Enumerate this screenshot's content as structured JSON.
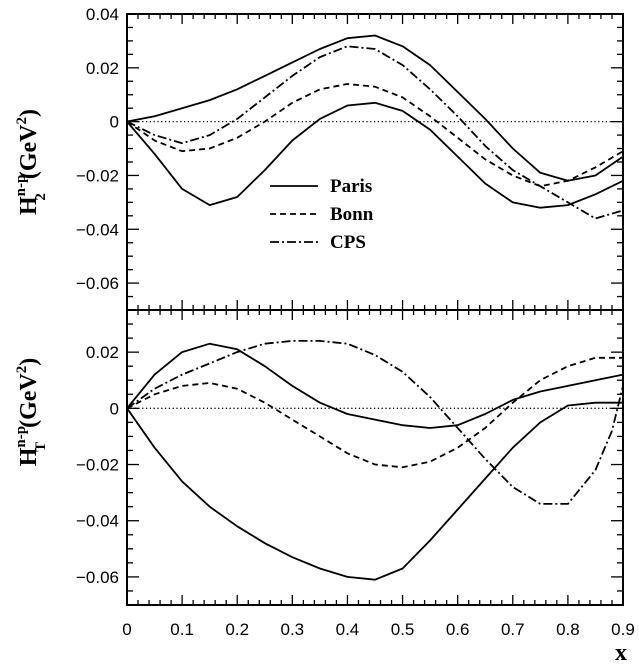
{
  "chart_data": [
    {
      "type": "line",
      "panel": "top",
      "ylabel": {
        "main": "H",
        "sup": "n-p",
        "sub": "2",
        "unit_pre": "(GeV",
        "unit_sup": "2",
        "unit_post": ")"
      },
      "ylim": [
        -0.07,
        0.04
      ],
      "yticks": [
        0.04,
        0.02,
        0,
        -0.02,
        -0.04,
        -0.06
      ],
      "ytick_labels": [
        "0.04",
        "0.02",
        "0",
        "−0.02",
        "−0.04",
        "−0.06"
      ],
      "xlim": [
        0,
        0.9
      ],
      "series": [
        {
          "name": "Paris",
          "style": "solid",
          "x": [
            0,
            0.05,
            0.1,
            0.15,
            0.2,
            0.25,
            0.3,
            0.35,
            0.4,
            0.45,
            0.5,
            0.55,
            0.6,
            0.65,
            0.7,
            0.75,
            0.8,
            0.85,
            0.9
          ],
          "y": [
            0,
            0.002,
            0.005,
            0.008,
            0.012,
            0.017,
            0.022,
            0.027,
            0.031,
            0.032,
            0.028,
            0.021,
            0.011,
            0.001,
            -0.01,
            -0.019,
            -0.022,
            -0.02,
            -0.013
          ]
        },
        {
          "name": "Paris",
          "style": "solid",
          "x": [
            0,
            0.05,
            0.1,
            0.15,
            0.2,
            0.25,
            0.3,
            0.35,
            0.4,
            0.45,
            0.5,
            0.55,
            0.6,
            0.65,
            0.7,
            0.75,
            0.8,
            0.85,
            0.9
          ],
          "y": [
            0,
            -0.012,
            -0.025,
            -0.031,
            -0.028,
            -0.018,
            -0.007,
            0.001,
            0.006,
            0.007,
            0.004,
            -0.003,
            -0.013,
            -0.023,
            -0.03,
            -0.032,
            -0.031,
            -0.027,
            -0.022
          ]
        },
        {
          "name": "Bonn",
          "style": "dashed",
          "x": [
            0,
            0.05,
            0.1,
            0.15,
            0.2,
            0.25,
            0.3,
            0.35,
            0.4,
            0.45,
            0.5,
            0.55,
            0.6,
            0.65,
            0.7,
            0.75,
            0.8,
            0.85,
            0.9
          ],
          "y": [
            0,
            -0.007,
            -0.011,
            -0.01,
            -0.006,
            0.0,
            0.007,
            0.012,
            0.014,
            0.013,
            0.009,
            0.002,
            -0.006,
            -0.014,
            -0.02,
            -0.024,
            -0.022,
            -0.017,
            -0.011
          ]
        },
        {
          "name": "CPS",
          "style": "dashdot",
          "x": [
            0,
            0.05,
            0.1,
            0.15,
            0.2,
            0.25,
            0.3,
            0.35,
            0.4,
            0.45,
            0.5,
            0.55,
            0.6,
            0.65,
            0.7,
            0.75,
            0.8,
            0.85,
            0.9
          ],
          "y": [
            0,
            -0.005,
            -0.008,
            -0.005,
            0.001,
            0.009,
            0.017,
            0.024,
            0.028,
            0.027,
            0.021,
            0.012,
            0.002,
            -0.009,
            -0.018,
            -0.024,
            -0.03,
            -0.036,
            -0.033
          ]
        },
        {
          "name": "",
          "style": "dotted",
          "x": [
            0,
            0.9
          ],
          "y": [
            0,
            0
          ]
        }
      ],
      "legend": {
        "placement": "center",
        "entries": [
          {
            "label": "Paris",
            "style": "solid"
          },
          {
            "label": "Bonn",
            "style": "dashed"
          },
          {
            "label": "CPS",
            "style": "dashdot"
          }
        ]
      }
    },
    {
      "type": "line",
      "panel": "bottom",
      "ylabel": {
        "main": "H",
        "sup": "n-p",
        "sub": "T",
        "unit_pre": "(GeV",
        "unit_sup": "2",
        "unit_post": ")"
      },
      "ylim": [
        -0.07,
        0.035
      ],
      "yticks": [
        0.02,
        0,
        -0.02,
        -0.04,
        -0.06
      ],
      "ytick_labels": [
        "0.02",
        "0",
        "−0.02",
        "−0.04",
        "−0.06"
      ],
      "xlim": [
        0,
        0.9
      ],
      "xticks": [
        0,
        0.1,
        0.2,
        0.3,
        0.4,
        0.5,
        0.6,
        0.7,
        0.8,
        0.9
      ],
      "xtick_labels": [
        "0",
        "0.1",
        "0.2",
        "0.3",
        "0.4",
        "0.5",
        "0.6",
        "0.7",
        "0.8",
        "0.9"
      ],
      "xlabel": "x",
      "series": [
        {
          "name": "Paris",
          "style": "solid",
          "x": [
            0,
            0.05,
            0.1,
            0.15,
            0.2,
            0.25,
            0.3,
            0.35,
            0.4,
            0.45,
            0.5,
            0.55,
            0.6,
            0.65,
            0.7,
            0.75,
            0.8,
            0.85,
            0.9
          ],
          "y": [
            0,
            0.012,
            0.02,
            0.023,
            0.021,
            0.015,
            0.008,
            0.002,
            -0.002,
            -0.004,
            -0.006,
            -0.007,
            -0.006,
            -0.002,
            0.003,
            0.006,
            0.008,
            0.01,
            0.012
          ]
        },
        {
          "name": "Paris",
          "style": "solid",
          "x": [
            0,
            0.05,
            0.1,
            0.15,
            0.2,
            0.25,
            0.3,
            0.35,
            0.4,
            0.45,
            0.5,
            0.55,
            0.6,
            0.65,
            0.7,
            0.75,
            0.8,
            0.85,
            0.9
          ],
          "y": [
            0,
            -0.014,
            -0.026,
            -0.035,
            -0.042,
            -0.048,
            -0.053,
            -0.057,
            -0.06,
            -0.061,
            -0.057,
            -0.047,
            -0.036,
            -0.025,
            -0.014,
            -0.005,
            0.001,
            0.002,
            0.002
          ]
        },
        {
          "name": "Bonn",
          "style": "dashed",
          "x": [
            0,
            0.05,
            0.1,
            0.15,
            0.2,
            0.25,
            0.3,
            0.35,
            0.4,
            0.45,
            0.5,
            0.55,
            0.6,
            0.65,
            0.7,
            0.75,
            0.8,
            0.85,
            0.9
          ],
          "y": [
            0,
            0.005,
            0.008,
            0.009,
            0.007,
            0.002,
            -0.004,
            -0.01,
            -0.016,
            -0.02,
            -0.021,
            -0.019,
            -0.014,
            -0.007,
            0.002,
            0.01,
            0.015,
            0.018,
            0.018
          ]
        },
        {
          "name": "CPS",
          "style": "dashdot",
          "x": [
            0,
            0.05,
            0.1,
            0.15,
            0.2,
            0.25,
            0.3,
            0.35,
            0.4,
            0.45,
            0.5,
            0.55,
            0.6,
            0.65,
            0.7,
            0.75,
            0.8,
            0.85,
            0.88,
            0.9
          ],
          "y": [
            0,
            0.007,
            0.012,
            0.016,
            0.02,
            0.023,
            0.024,
            0.024,
            0.023,
            0.019,
            0.013,
            0.004,
            -0.007,
            -0.018,
            -0.028,
            -0.034,
            -0.034,
            -0.022,
            -0.008,
            0.008
          ]
        },
        {
          "name": "",
          "style": "dotted",
          "x": [
            0,
            0.9
          ],
          "y": [
            0,
            0
          ]
        }
      ]
    }
  ]
}
